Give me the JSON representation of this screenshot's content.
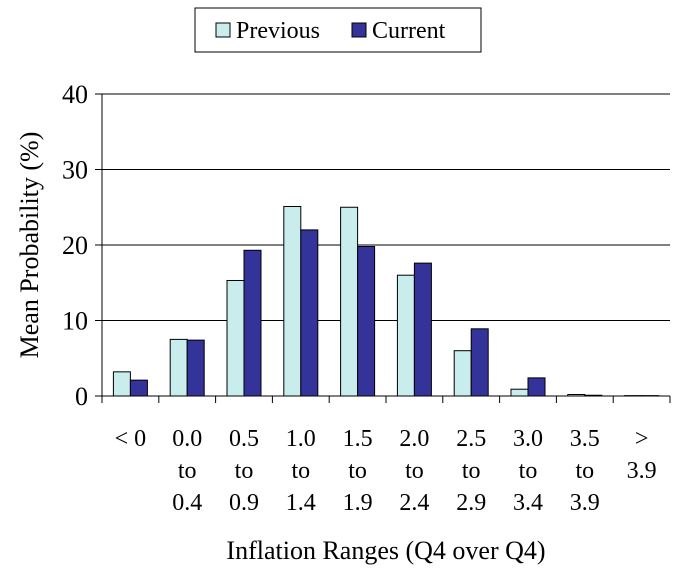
{
  "chart_data": {
    "type": "bar",
    "title": "",
    "xlabel": "Inflation Ranges (Q4 over Q4)",
    "ylabel": "Mean Probability (%)",
    "ylim": [
      0,
      40
    ],
    "yticks": [
      "0",
      "10",
      "20",
      "30",
      "40"
    ],
    "grid": true,
    "legend_position": "top-center",
    "categories": [
      [
        "< 0"
      ],
      [
        "0.0",
        "to",
        "0.4"
      ],
      [
        "0.5",
        "to",
        "0.9"
      ],
      [
        "1.0",
        "to",
        "1.4"
      ],
      [
        "1.5",
        "to",
        "1.9"
      ],
      [
        "2.0",
        "to",
        "2.4"
      ],
      [
        "2.5",
        "to",
        "2.9"
      ],
      [
        "3.0",
        "to",
        "3.4"
      ],
      [
        "3.5",
        "to",
        "3.9"
      ],
      [
        ">",
        "3.9"
      ]
    ],
    "series": [
      {
        "name": "Previous",
        "color": "#c9ecec",
        "values": [
          3.2,
          7.5,
          15.3,
          25.1,
          25.0,
          16.0,
          6.0,
          0.9,
          0.2,
          0.05
        ]
      },
      {
        "name": "Current",
        "color": "#333399",
        "values": [
          2.1,
          7.4,
          19.3,
          22.0,
          19.8,
          17.6,
          8.9,
          2.4,
          0.1,
          0.05
        ]
      }
    ]
  }
}
